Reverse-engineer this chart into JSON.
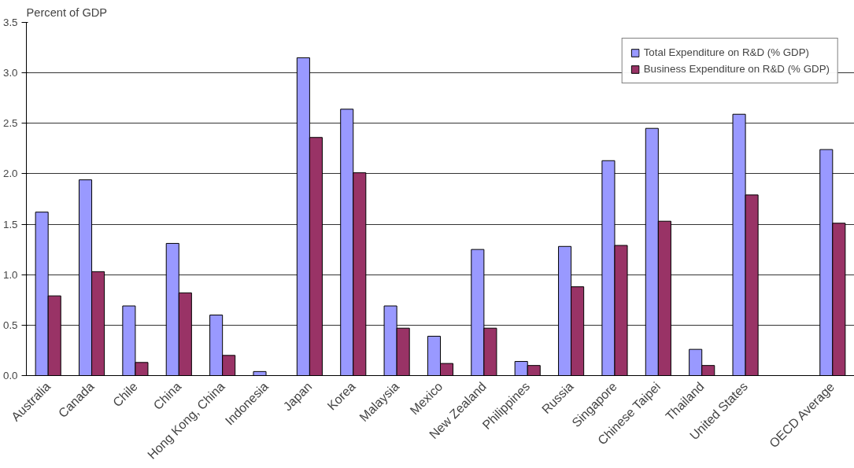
{
  "chart_data": {
    "type": "bar",
    "ylabel": "Percent of GDP",
    "categories": [
      "Australia",
      "Canada",
      "Chile",
      "China",
      "Hong Kong, China",
      "Indonesia",
      "Japan",
      "Korea",
      "Malaysia",
      "Mexico",
      "New Zealand",
      "Philippines",
      "Russia",
      "Singapore",
      "Chinese Taipei",
      "Thailand",
      "United States",
      null,
      "OECD Average"
    ],
    "series": [
      {
        "name": "Total Expenditure on R&D (% GDP)",
        "color": "#9999ff",
        "values": [
          1.62,
          1.94,
          0.69,
          1.31,
          0.6,
          0.04,
          3.15,
          2.64,
          0.69,
          0.39,
          1.25,
          0.14,
          1.28,
          2.13,
          2.45,
          0.26,
          2.59,
          null,
          2.24
        ]
      },
      {
        "name": "Business Expenditure on R&D (% GDP)",
        "color": "#993366",
        "values": [
          0.79,
          1.03,
          0.13,
          0.82,
          0.2,
          null,
          2.36,
          2.01,
          0.47,
          0.12,
          0.47,
          0.1,
          0.88,
          1.29,
          1.53,
          0.1,
          1.79,
          null,
          1.51
        ]
      }
    ],
    "ylim": [
      0,
      3.5
    ],
    "yticks": [
      {
        "value": 0,
        "label": "0.0"
      },
      0.5,
      {
        "value": 1,
        "label": "1.0"
      },
      1.5,
      {
        "value": 2,
        "label": "2.0"
      },
      2.5,
      {
        "value": 3,
        "label": "3.0"
      },
      3.5
    ],
    "grid": "y",
    "legend": "top right"
  }
}
